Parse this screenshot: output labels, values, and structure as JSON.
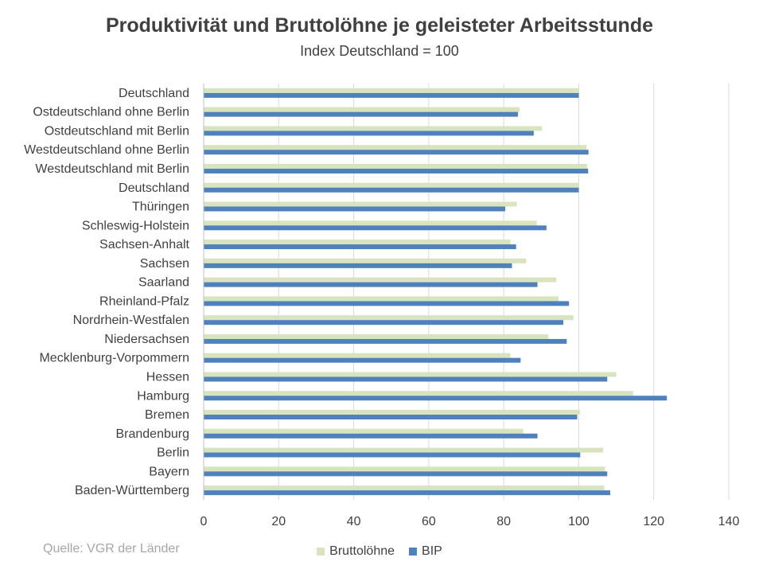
{
  "chart_data": {
    "type": "bar",
    "orientation": "horizontal",
    "title": "Produktivität und Bruttolöhne je geleisteter Arbeitsstunde",
    "subtitle": "Index Deutschland = 100",
    "xlim": [
      0,
      140
    ],
    "xticks": [
      "0",
      "20",
      "40",
      "60",
      "80",
      "100",
      "120",
      "140"
    ],
    "grid": true,
    "categories": [
      "Deutschland",
      "Ostdeutschland ohne Berlin",
      "Ostdeutschland mit Berlin",
      "Westdeutschland ohne Berlin",
      "Westdeutschland mit Berlin",
      "Deutschland",
      "Thüringen",
      "Schleswig-Holstein",
      "Sachsen-Anhalt",
      "Sachsen",
      "Saarland",
      "Rheinland-Pfalz",
      "Nordrhein-Westfalen",
      "Niedersachsen",
      "Mecklenburg-Vorpommern",
      "Hessen",
      "Hamburg",
      "Bremen",
      "Brandenburg",
      "Berlin",
      "Bayern",
      "Baden-Württemberg"
    ],
    "series": [
      {
        "name": "Bruttolöhne",
        "color": "#d7e4bd",
        "values": [
          100,
          84.2,
          90.2,
          102.1,
          102.3,
          100,
          83.5,
          88.8,
          81.8,
          86,
          94,
          94.6,
          98.6,
          91.9,
          81.8,
          110,
          114.5,
          100.3,
          85.2,
          106.5,
          107,
          106.8
        ]
      },
      {
        "name": "BIP",
        "color": "#4f81bd",
        "values": [
          100,
          83.8,
          88,
          102.6,
          102.5,
          100,
          80.4,
          91.4,
          83.3,
          82.2,
          89,
          97.4,
          95.9,
          96.8,
          84.5,
          107.6,
          123.5,
          99.6,
          89,
          100.4,
          107.6,
          108.4
        ]
      }
    ],
    "legend_position": "bottom"
  },
  "source": "Quelle: VGR der Länder"
}
